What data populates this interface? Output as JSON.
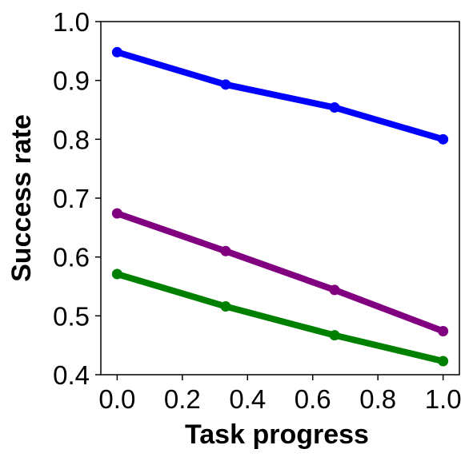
{
  "chart_data": {
    "type": "line",
    "title": "",
    "xlabel": "Task progress",
    "ylabel": "Success rate",
    "xlim": [
      -0.05,
      1.05
    ],
    "ylim": [
      0.4,
      1.0
    ],
    "xticks": [
      0.0,
      0.2,
      0.4,
      0.6,
      0.8,
      1.0
    ],
    "xtick_labels": [
      "0.0",
      "0.2",
      "0.4",
      "0.6",
      "0.8",
      "1.0"
    ],
    "yticks": [
      0.4,
      0.5,
      0.6,
      0.7,
      0.8,
      0.9,
      1.0
    ],
    "ytick_labels": [
      "0.4",
      "0.5",
      "0.6",
      "0.7",
      "0.8",
      "0.9",
      "1.0"
    ],
    "grid": false,
    "legend": false,
    "x": [
      0.0,
      0.333,
      0.667,
      1.0
    ],
    "series": [
      {
        "color": "#0000ff",
        "values": [
          0.948,
          0.893,
          0.854,
          0.8
        ]
      },
      {
        "color": "#800080",
        "values": [
          0.674,
          0.61,
          0.544,
          0.474
        ]
      },
      {
        "color": "#008000",
        "values": [
          0.571,
          0.516,
          0.467,
          0.423
        ]
      }
    ]
  }
}
